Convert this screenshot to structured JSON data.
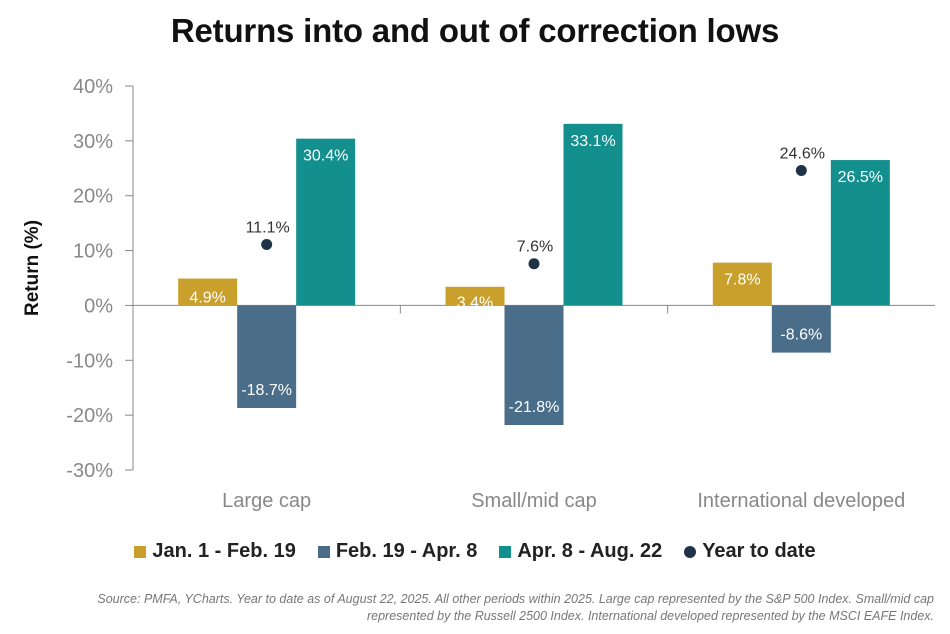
{
  "chart_data": {
    "type": "bar",
    "title": "Returns into and out of correction lows",
    "ylabel": "Return (%)",
    "xlabel": "",
    "ylim": [
      -30,
      40
    ],
    "yticks": [
      40,
      30,
      20,
      10,
      0,
      -10,
      -20,
      -30
    ],
    "ytick_labels": [
      "40%",
      "30%",
      "20%",
      "10%",
      "0%",
      "-10%",
      "-20%",
      "-30%"
    ],
    "categories": [
      "Large cap",
      "Small/mid cap",
      "International developed"
    ],
    "series": [
      {
        "name": "Jan. 1 - Feb. 19",
        "color": "#C9A02C",
        "values": [
          4.9,
          3.4,
          7.8
        ],
        "labels": [
          "4.9%",
          "3.4%",
          "7.8%"
        ]
      },
      {
        "name": "Feb. 19 - Apr. 8",
        "color": "#4A6E8A",
        "values": [
          -18.7,
          -21.8,
          -8.6
        ],
        "labels": [
          "-18.7%",
          "-21.8%",
          "-8.6%"
        ]
      },
      {
        "name": "Apr. 8 - Aug. 22",
        "color": "#138F8E",
        "values": [
          30.4,
          33.1,
          26.5
        ],
        "labels": [
          "30.4%",
          "33.1%",
          "26.5%"
        ]
      },
      {
        "name": "Year to date",
        "color": "#1F3347",
        "type": "scatter",
        "values": [
          11.1,
          7.6,
          24.6
        ],
        "labels": [
          "11.1%",
          "7.6%",
          "24.6%"
        ]
      }
    ],
    "legend_position": "bottom",
    "grid": false
  },
  "source_note": "Source: PMFA, YCharts. Year to date as of August 22, 2025. All other periods within 2025. Large cap represented by the S&P 500 Index. Small/mid cap represented by the Russell 2500 Index. International developed represented by the MSCI EAFE Index."
}
